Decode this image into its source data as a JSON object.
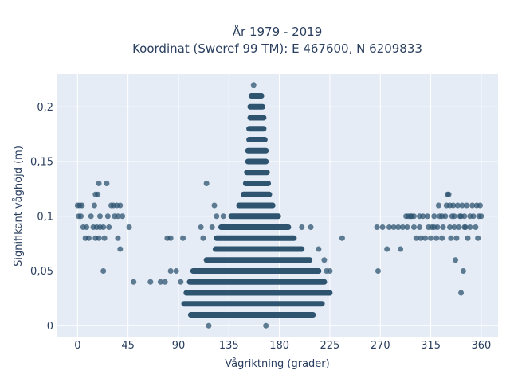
{
  "chart_data": {
    "type": "scatter",
    "title_lines": [
      "År 1979 - 2019",
      "Koordinat (Sweref 99 TM): E 467600, N 6209833"
    ],
    "xlabel": "Vågriktning (grader)",
    "ylabel": "Signifikant våghöjd (m)",
    "xlim": [
      -18,
      375
    ],
    "ylim": [
      -0.01,
      0.23
    ],
    "x_ticks": [
      0,
      45,
      90,
      135,
      180,
      225,
      270,
      315,
      360
    ],
    "x_tick_labels": [
      "0",
      "45",
      "90",
      "135",
      "180",
      "225",
      "270",
      "315",
      "360"
    ],
    "y_ticks": [
      0,
      0.05,
      0.1,
      0.15,
      0.2
    ],
    "y_tick_labels": [
      "0",
      "0,05",
      "0,1",
      "0,15",
      "0,2"
    ],
    "grid": true,
    "colors": {
      "marker": "#2e5470",
      "plot_bg": "#e5ecf6",
      "grid": "#ffffff",
      "text": "#2a3f5f"
    },
    "bands": [
      {
        "y": 0.21,
        "x": [
          155,
          164
        ]
      },
      {
        "y": 0.2,
        "x": [
          154,
          165
        ]
      },
      {
        "y": 0.19,
        "x": [
          154,
          166
        ]
      },
      {
        "y": 0.18,
        "x": [
          153,
          166
        ]
      },
      {
        "y": 0.17,
        "x": [
          153,
          167
        ]
      },
      {
        "y": 0.16,
        "x": [
          152,
          168
        ]
      },
      {
        "y": 0.15,
        "x": [
          152,
          168
        ]
      },
      {
        "y": 0.14,
        "x": [
          151,
          169
        ]
      },
      {
        "y": 0.13,
        "x": [
          150,
          170
        ]
      },
      {
        "y": 0.12,
        "x": [
          148,
          171
        ]
      },
      {
        "y": 0.11,
        "x": [
          144,
          174
        ]
      },
      {
        "y": 0.1,
        "x": [
          137,
          179
        ]
      },
      {
        "y": 0.09,
        "x": [
          128,
          188
        ]
      },
      {
        "y": 0.08,
        "x": [
          124,
          193
        ]
      },
      {
        "y": 0.07,
        "x": [
          123,
          200
        ]
      },
      {
        "y": 0.06,
        "x": [
          115,
          207
        ]
      },
      {
        "y": 0.05,
        "x": [
          103,
          215
        ]
      },
      {
        "y": 0.04,
        "x": [
          100,
          220
        ]
      },
      {
        "y": 0.03,
        "x": [
          97,
          225
        ]
      },
      {
        "y": 0.02,
        "x": [
          95,
          218
        ]
      },
      {
        "y": 0.01,
        "x": [
          101,
          210
        ]
      }
    ],
    "points": [
      [
        157,
        0.22
      ],
      [
        117,
        0
      ],
      [
        168,
        0
      ],
      [
        190,
        0.01
      ],
      [
        92,
        0.04
      ],
      [
        88,
        0.05
      ],
      [
        83,
        0.05
      ],
      [
        78,
        0.04
      ],
      [
        110,
        0.09
      ],
      [
        112,
        0.08
      ],
      [
        115,
        0.13
      ],
      [
        122,
        0.11
      ],
      [
        124,
        0.1
      ],
      [
        120,
        0.09
      ],
      [
        130,
        0.1
      ],
      [
        200,
        0.09
      ],
      [
        208,
        0.09
      ],
      [
        215,
        0.07
      ],
      [
        220,
        0.06
      ],
      [
        222,
        0.05
      ],
      [
        225,
        0.05
      ],
      [
        236,
        0.08
      ],
      [
        74,
        0.04
      ],
      [
        65,
        0.04
      ],
      [
        50,
        0.04
      ],
      [
        46,
        0.09
      ],
      [
        38,
        0.07
      ],
      [
        36,
        0.08
      ],
      [
        80,
        0.08
      ],
      [
        83,
        0.08
      ],
      [
        94,
        0.08
      ],
      [
        0,
        0.11
      ],
      [
        2,
        0.11
      ],
      [
        4,
        0.11
      ],
      [
        1,
        0.1
      ],
      [
        3,
        0.1
      ],
      [
        5,
        0.09
      ],
      [
        8,
        0.09
      ],
      [
        7,
        0.08
      ],
      [
        10,
        0.08
      ],
      [
        12,
        0.1
      ],
      [
        15,
        0.11
      ],
      [
        16,
        0.12
      ],
      [
        18,
        0.12
      ],
      [
        19,
        0.13
      ],
      [
        14,
        0.09
      ],
      [
        17,
        0.09
      ],
      [
        20,
        0.09
      ],
      [
        16,
        0.08
      ],
      [
        19,
        0.08
      ],
      [
        20,
        0.1
      ],
      [
        23,
        0.09
      ],
      [
        24,
        0.08
      ],
      [
        26,
        0.13
      ],
      [
        27,
        0.1
      ],
      [
        28,
        0.09
      ],
      [
        30,
        0.11
      ],
      [
        32,
        0.11
      ],
      [
        33,
        0.1
      ],
      [
        35,
        0.11
      ],
      [
        36,
        0.1
      ],
      [
        38,
        0.11
      ],
      [
        40,
        0.1
      ],
      [
        23,
        0.05
      ],
      [
        267,
        0.09
      ],
      [
        268,
        0.05
      ],
      [
        272,
        0.09
      ],
      [
        276,
        0.07
      ],
      [
        278,
        0.09
      ],
      [
        282,
        0.09
      ],
      [
        286,
        0.09
      ],
      [
        288,
        0.07
      ],
      [
        290,
        0.09
      ],
      [
        293,
        0.1
      ],
      [
        294,
        0.09
      ],
      [
        295,
        0.1
      ],
      [
        297,
        0.1
      ],
      [
        298,
        0.1
      ],
      [
        300,
        0.1
      ],
      [
        300,
        0.09
      ],
      [
        302,
        0.08
      ],
      [
        305,
        0.1
      ],
      [
        305,
        0.09
      ],
      [
        306,
        0.08
      ],
      [
        308,
        0.1
      ],
      [
        310,
        0.08
      ],
      [
        312,
        0.1
      ],
      [
        313,
        0.09
      ],
      [
        315,
        0.08
      ],
      [
        316,
        0.09
      ],
      [
        318,
        0.09
      ],
      [
        318,
        0.1
      ],
      [
        320,
        0.08
      ],
      [
        321,
        0.09
      ],
      [
        322,
        0.11
      ],
      [
        323,
        0.1
      ],
      [
        325,
        0.08
      ],
      [
        325,
        0.1
      ],
      [
        326,
        0.09
      ],
      [
        328,
        0.1
      ],
      [
        329,
        0.11
      ],
      [
        330,
        0.12
      ],
      [
        331,
        0.12
      ],
      [
        332,
        0.11
      ],
      [
        332,
        0.09
      ],
      [
        333,
        0.08
      ],
      [
        334,
        0.1
      ],
      [
        335,
        0.11
      ],
      [
        336,
        0.09
      ],
      [
        337,
        0.06
      ],
      [
        338,
        0.08
      ],
      [
        340,
        0.09
      ],
      [
        341,
        0.1
      ],
      [
        342,
        0.03
      ],
      [
        343,
        0.11
      ],
      [
        344,
        0.05
      ],
      [
        345,
        0.09
      ],
      [
        345,
        0.1
      ],
      [
        347,
        0.11
      ],
      [
        348,
        0.08
      ],
      [
        350,
        0.1
      ],
      [
        350,
        0.09
      ],
      [
        352,
        0.11
      ],
      [
        353,
        0.1
      ],
      [
        355,
        0.09
      ],
      [
        356,
        0.11
      ],
      [
        357,
        0.08
      ],
      [
        358,
        0.1
      ],
      [
        359,
        0.11
      ],
      [
        360,
        0.1
      ],
      [
        336,
        0.1
      ],
      [
        339,
        0.11
      ],
      [
        342,
        0.1
      ],
      [
        346,
        0.09
      ]
    ]
  }
}
